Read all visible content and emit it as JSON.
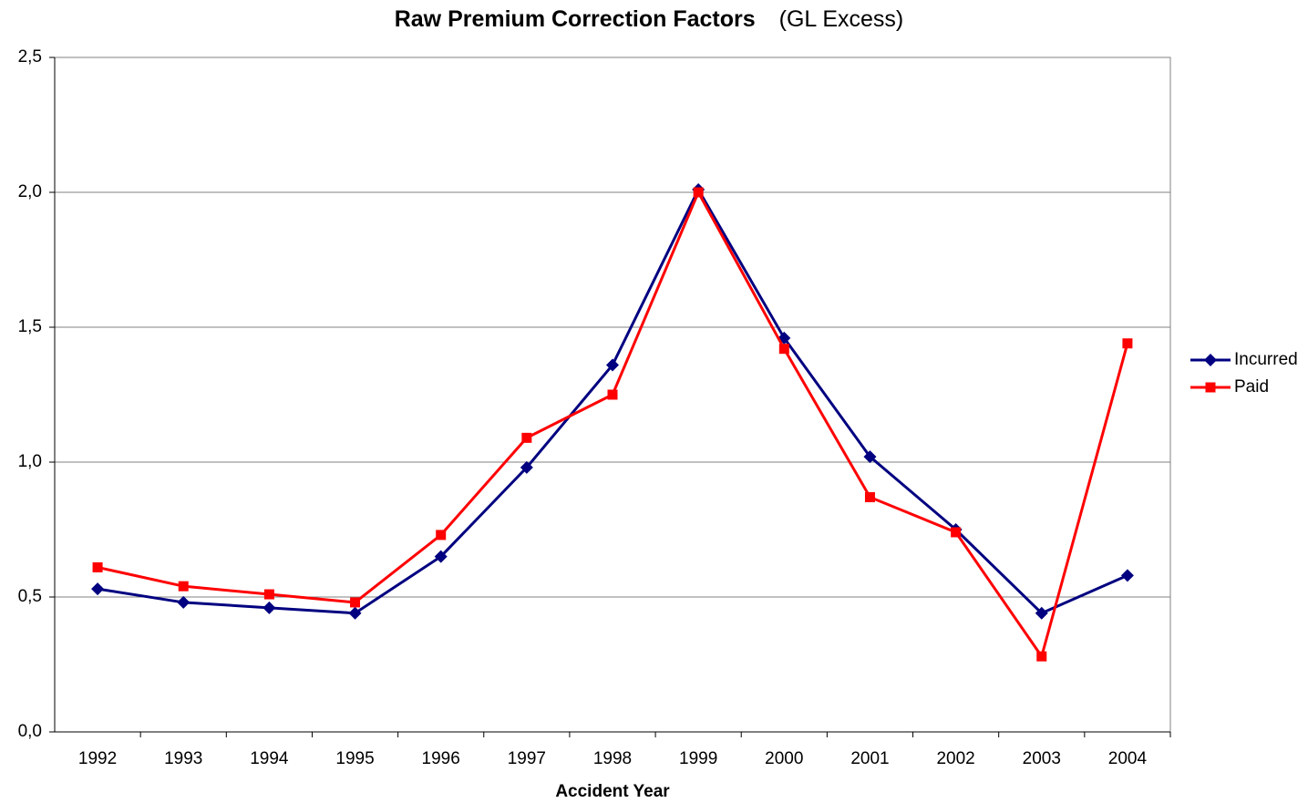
{
  "chart_data": {
    "type": "line",
    "title": "Raw Premium Correction Factors",
    "subtitle": "(GL Excess)",
    "x_label": "Accident Year",
    "categories": [
      "1992",
      "1993",
      "1994",
      "1995",
      "1996",
      "1997",
      "1998",
      "1999",
      "2000",
      "2001",
      "2002",
      "2003",
      "2004"
    ],
    "series": [
      {
        "name": "Incurred",
        "color": "#000080",
        "marker": "diamond",
        "values": [
          0.53,
          0.48,
          0.46,
          0.44,
          0.65,
          0.98,
          1.36,
          2.01,
          1.46,
          1.02,
          0.75,
          0.44,
          0.58
        ]
      },
      {
        "name": "Paid",
        "color": "#ff0000",
        "marker": "square",
        "values": [
          0.61,
          0.54,
          0.51,
          0.48,
          0.73,
          1.09,
          1.25,
          2.0,
          1.42,
          0.87,
          0.74,
          0.28,
          1.44
        ]
      }
    ],
    "ylim": [
      0,
      2.5
    ],
    "yticks": [
      {
        "value": 0,
        "label": "0,0"
      },
      {
        "value": 0.5,
        "label": "0,5"
      },
      {
        "value": 1,
        "label": "1,0"
      },
      {
        "value": 1.5,
        "label": "1,5"
      },
      {
        "value": 2,
        "label": "2,0"
      },
      {
        "value": 2.5,
        "label": "2,5"
      }
    ],
    "grid": true,
    "legend": "right"
  }
}
